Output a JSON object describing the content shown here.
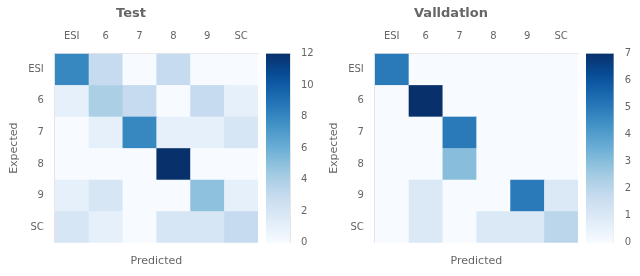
{
  "chart_data": [
    {
      "type": "heatmap",
      "title": "Test",
      "xlabel": "Predicted",
      "ylabel": "Expected",
      "x_categories": [
        "ESI",
        "6",
        "7",
        "8",
        "9",
        "SC"
      ],
      "y_categories": [
        "ESI",
        "6",
        "7",
        "8",
        "9",
        "SC"
      ],
      "values": [
        [
          8,
          3,
          0,
          3,
          0,
          0
        ],
        [
          1,
          4,
          3,
          0,
          3,
          1
        ],
        [
          0,
          1,
          8,
          1,
          1,
          2
        ],
        [
          0,
          0,
          0,
          12,
          0,
          0
        ],
        [
          1,
          2,
          0,
          0,
          5,
          1
        ],
        [
          2,
          1,
          0,
          2,
          2,
          3
        ]
      ],
      "colorbar_range": [
        0,
        12
      ],
      "colorbar_ticks": [
        0,
        2,
        4,
        6,
        8,
        10,
        12
      ],
      "grid": false
    },
    {
      "type": "heatmap",
      "title": "Valldatlon",
      "xlabel": "Predicted",
      "ylabel": "Expected",
      "x_categories": [
        "ESI",
        "6",
        "7",
        "8",
        "9",
        "SC"
      ],
      "y_categories": [
        "ESI",
        "6",
        "7",
        "8",
        "9",
        "SC"
      ],
      "values": [
        [
          5,
          0,
          0,
          0,
          0,
          0
        ],
        [
          0,
          7,
          0,
          0,
          0,
          0
        ],
        [
          0,
          0,
          5,
          0,
          0,
          0
        ],
        [
          0,
          0,
          3,
          0,
          0,
          0
        ],
        [
          0,
          1,
          0,
          0,
          5,
          1
        ],
        [
          0,
          1,
          0,
          1,
          1,
          2
        ]
      ],
      "colorbar_range": [
        0,
        7
      ],
      "colorbar_ticks": [
        0,
        1,
        2,
        3,
        4,
        5,
        6,
        7
      ],
      "grid": false
    }
  ]
}
